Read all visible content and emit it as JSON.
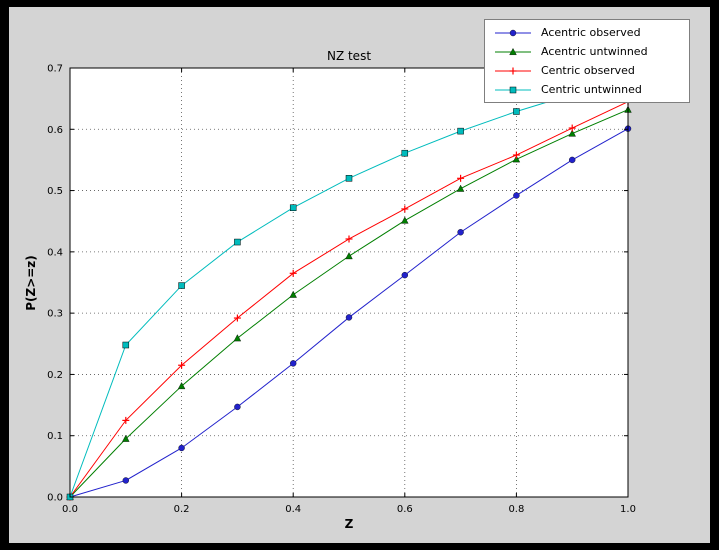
{
  "window": {
    "frame_bg": "#000000",
    "figure_bg": "#d4d4d4",
    "plot_bg": "#ffffff"
  },
  "chart_data": {
    "type": "line",
    "title": "NZ test",
    "xlabel": "Z",
    "ylabel": "P(Z>=z)",
    "xlim": [
      0.0,
      1.0
    ],
    "ylim": [
      0.0,
      0.7
    ],
    "grid": true,
    "grid_style": "dotted",
    "legend_position": "upper right",
    "xticks": {
      "values": [
        0.0,
        0.2,
        0.4,
        0.6,
        0.8,
        1.0
      ],
      "labels": [
        "0.0",
        "0.2",
        "0.4",
        "0.6",
        "0.8",
        "1.0"
      ]
    },
    "yticks": {
      "values": [
        0.0,
        0.1,
        0.2,
        0.3,
        0.4,
        0.5,
        0.6,
        0.7
      ],
      "labels": [
        "0.0",
        "0.1",
        "0.2",
        "0.3",
        "0.4",
        "0.5",
        "0.6",
        "0.7"
      ]
    },
    "x": [
      0.0,
      0.1,
      0.2,
      0.3,
      0.4,
      0.5,
      0.6,
      0.7,
      0.8,
      0.9,
      1.0
    ],
    "series": [
      {
        "name": "Acentric observed",
        "color": "#2222cc",
        "marker": "circle",
        "values": [
          0.0,
          0.027,
          0.08,
          0.147,
          0.218,
          0.293,
          0.362,
          0.432,
          0.492,
          0.55,
          0.601
        ]
      },
      {
        "name": "Acentric untwinned",
        "color": "#007f00",
        "marker": "triangle",
        "values": [
          0.0,
          0.095,
          0.181,
          0.259,
          0.33,
          0.393,
          0.451,
          0.503,
          0.551,
          0.593,
          0.632
        ]
      },
      {
        "name": "Centric observed",
        "color": "#ff0000",
        "marker": "plus",
        "values": [
          0.0,
          0.125,
          0.215,
          0.292,
          0.365,
          0.421,
          0.47,
          0.52,
          0.558,
          0.602,
          0.645
        ]
      },
      {
        "name": "Centric untwinned",
        "color": "#00bcbd",
        "marker": "square",
        "values": [
          0.0,
          0.248,
          0.345,
          0.416,
          0.472,
          0.52,
          0.561,
          0.597,
          0.629,
          0.657,
          0.683
        ]
      }
    ]
  }
}
